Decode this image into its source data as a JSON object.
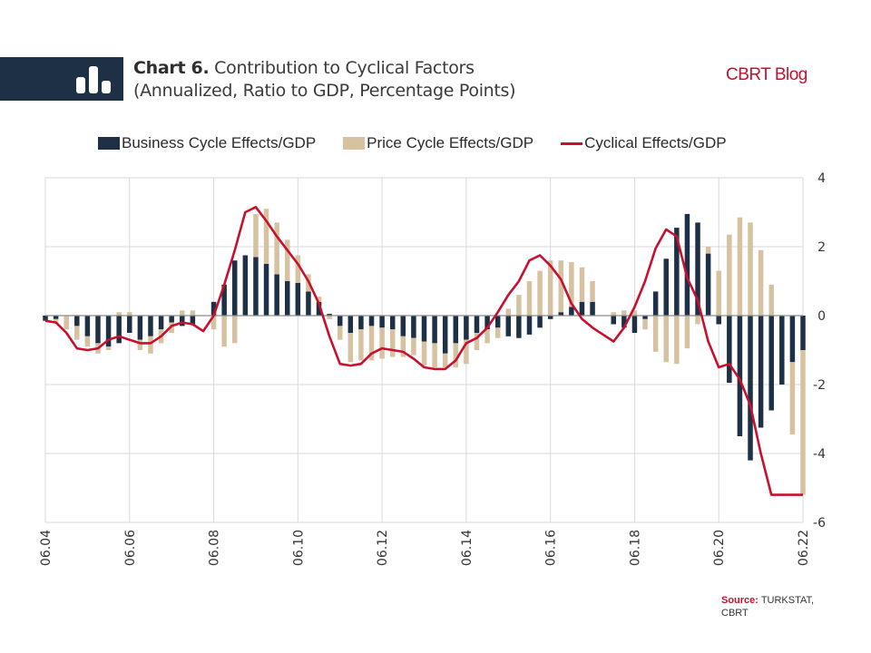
{
  "header": {
    "chart_number": "Chart 6.",
    "title_line1": "Contribution to Cyclical Factors",
    "title_line2": "(Annualized, Ratio to GDP, Percentage Points)",
    "brand": "CBRT Blog",
    "icon": "bar-chart-icon"
  },
  "colors": {
    "banner": "#1d3045",
    "business": "#1d3045",
    "price": "#d6c2a0",
    "cyclical": "#c8102e",
    "brand": "#c8102e"
  },
  "legend": [
    {
      "label": "Business Cycle Effects/GDP",
      "type": "box",
      "color": "#1d3045"
    },
    {
      "label": "Price Cycle Effects/GDP",
      "type": "box",
      "color": "#d6c2a0"
    },
    {
      "label": "Cyclical Effects/GDP",
      "type": "line",
      "color": "#c8102e"
    }
  ],
  "footer": {
    "source_label": "Source:",
    "source_text": "TURKSTAT, CBRT"
  },
  "chart_data": {
    "type": "bar",
    "stacked": true,
    "title": "Contribution to Cyclical Factors (Annualized, Ratio to GDP, Percentage Points)",
    "xlabel": "",
    "ylabel": "",
    "ylim": [
      -6,
      4
    ],
    "yticks": [
      4,
      2,
      0,
      -2,
      -4,
      -6
    ],
    "y_axis_side": "right",
    "grid": true,
    "legend_position": "top",
    "x_tick_labels": [
      "06.04",
      "06.06",
      "06.08",
      "06.10",
      "06.12",
      "06.14",
      "06.16",
      "06.18",
      "06.20",
      "06.22"
    ],
    "x_start": "2004Q2",
    "x_end": "2022Q2",
    "frequency": "quarterly",
    "series": [
      {
        "name": "Business Cycle Effects/GDP",
        "type": "bar",
        "values": [
          -0.15,
          -0.1,
          0.0,
          -0.3,
          -0.6,
          -0.8,
          -0.9,
          -0.8,
          -0.5,
          -0.7,
          -0.6,
          -0.4,
          -0.2,
          -0.3,
          -0.25,
          0.0,
          0.4,
          0.9,
          1.6,
          1.75,
          1.7,
          1.5,
          1.2,
          1.0,
          0.95,
          0.7,
          0.4,
          0.05,
          -0.3,
          -0.5,
          -0.4,
          -0.3,
          -0.35,
          -0.4,
          -0.6,
          -0.65,
          -0.75,
          -0.8,
          -1.1,
          -0.8,
          -0.7,
          -0.5,
          -0.4,
          -0.35,
          -0.6,
          -0.65,
          -0.55,
          -0.35,
          -0.1,
          0.1,
          0.25,
          0.4,
          0.4,
          0.0,
          -0.25,
          -0.35,
          -0.5,
          -0.1,
          0.7,
          1.65,
          2.55,
          2.95,
          2.7,
          1.8,
          -0.25,
          -1.95,
          -3.5,
          -4.2,
          -3.25,
          -2.75,
          -2.0,
          -1.35,
          -1.0
        ]
      },
      {
        "name": "Price Cycle Effects/GDP",
        "type": "bar",
        "values": [
          0.0,
          -0.1,
          -0.4,
          -0.4,
          -0.3,
          -0.3,
          -0.1,
          0.1,
          0.1,
          -0.3,
          -0.5,
          -0.4,
          -0.3,
          0.15,
          0.15,
          0.0,
          -0.4,
          -0.9,
          -0.8,
          0.0,
          1.25,
          1.6,
          1.5,
          1.2,
          0.8,
          0.5,
          0.15,
          -0.1,
          -0.4,
          -0.85,
          -0.9,
          -1.0,
          -0.9,
          -0.8,
          -0.6,
          -0.5,
          -0.7,
          -0.7,
          -0.4,
          -0.7,
          -0.7,
          -0.5,
          -0.4,
          -0.3,
          0.2,
          0.6,
          1.0,
          1.3,
          1.6,
          1.5,
          1.3,
          1.0,
          0.6,
          0.0,
          0.1,
          0.15,
          0.15,
          -0.3,
          -1.05,
          -1.35,
          -1.4,
          -0.95,
          -0.25,
          0.2,
          1.3,
          2.35,
          2.85,
          2.7,
          1.9,
          0.9,
          0.0,
          -2.1,
          -4.2
        ]
      },
      {
        "name": "Cyclical Effects/GDP",
        "type": "line",
        "values": [
          -0.15,
          -0.2,
          -0.5,
          -0.95,
          -1.0,
          -0.95,
          -0.7,
          -0.6,
          -0.7,
          -0.8,
          -0.8,
          -0.6,
          -0.3,
          -0.2,
          -0.25,
          -0.45,
          0.0,
          0.9,
          1.9,
          3.0,
          3.15,
          2.75,
          2.3,
          1.9,
          1.5,
          1.0,
          0.35,
          -0.6,
          -1.4,
          -1.45,
          -1.4,
          -1.1,
          -0.95,
          -1.0,
          -1.05,
          -1.25,
          -1.5,
          -1.55,
          -1.55,
          -1.3,
          -0.8,
          -0.65,
          -0.35,
          0.1,
          0.6,
          1.0,
          1.6,
          1.75,
          1.45,
          1.05,
          0.35,
          -0.1,
          -0.35,
          -0.55,
          -0.75,
          -0.35,
          0.25,
          1.0,
          1.95,
          2.5,
          2.3,
          1.1,
          0.45,
          -0.75,
          -1.5,
          -1.4,
          -1.85,
          -2.6,
          -4.0,
          -5.2,
          -5.2,
          -5.2,
          -5.2
        ]
      }
    ]
  }
}
